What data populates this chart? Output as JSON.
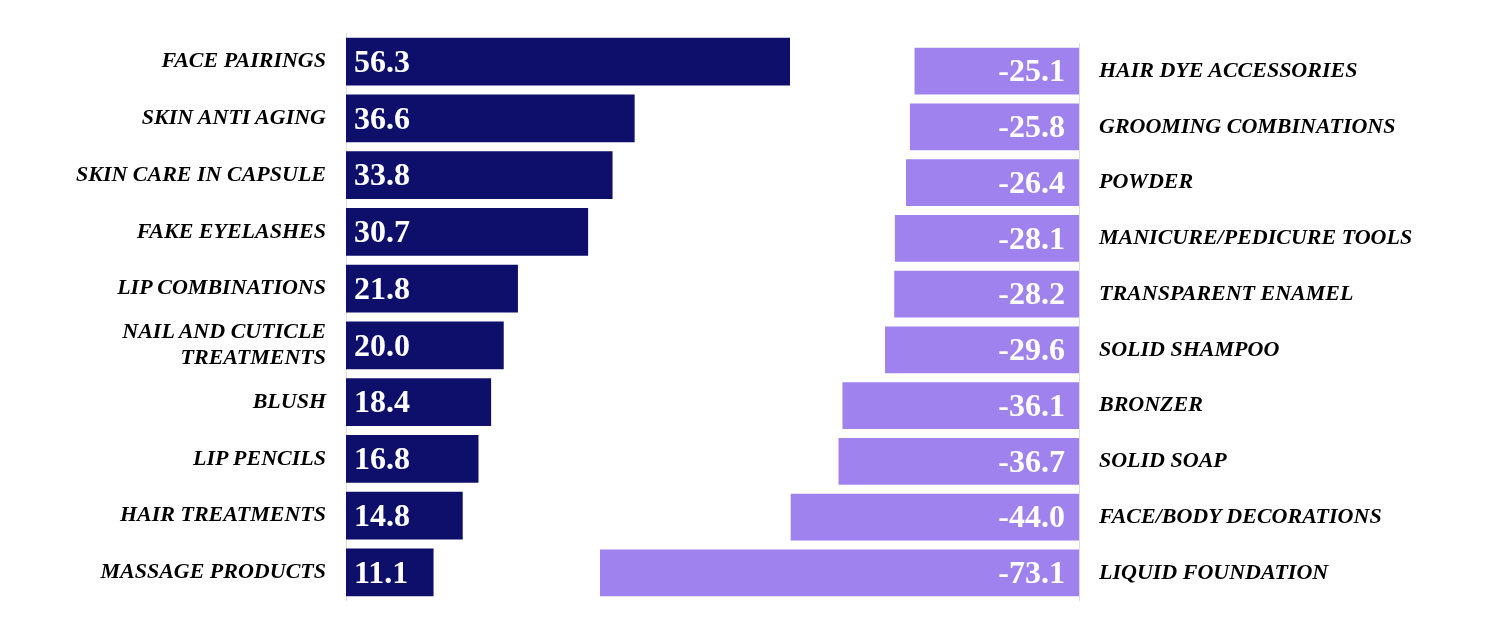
{
  "chart_data": [
    {
      "type": "bar",
      "orientation": "horizontal",
      "categories": [
        "FACE PAIRINGS",
        "SKIN ANTI AGING",
        "SKIN CARE IN CAPSULE",
        "FAKE EYELASHES",
        "LIP COMBINATIONS",
        "NAIL AND CUTICLE TREATMENTS",
        "BLUSH",
        "LIP PENCILS",
        "HAIR TREATMENTS",
        "MASSAGE PRODUCTS"
      ],
      "values": [
        56.3,
        36.6,
        33.8,
        30.7,
        21.8,
        20.0,
        18.4,
        16.8,
        14.8,
        11.1
      ],
      "value_labels": [
        "56.3",
        "36.6",
        "33.8",
        "30.7",
        "21.8",
        "20.0",
        "18.4",
        "16.8",
        "14.8",
        "11.1"
      ],
      "color": "#0d0f6b",
      "xlim": [
        0,
        56.3
      ],
      "tick_labels": "y",
      "grid": false
    },
    {
      "type": "bar",
      "orientation": "horizontal",
      "categories": [
        "HAIR DYE ACCESSORIES",
        "GROOMING COMBINATIONS",
        "POWDER",
        "MANICURE/PEDICURE TOOLS",
        "TRANSPARENT ENAMEL",
        "SOLID SHAMPOO",
        "BRONZER",
        "SOLID SOAP",
        "FACE/BODY DECORATIONS",
        "LIQUID FOUNDATION"
      ],
      "values": [
        -25.1,
        -25.8,
        -26.4,
        -28.1,
        -28.2,
        -29.6,
        -36.1,
        -36.7,
        -44.0,
        -73.1
      ],
      "value_labels": [
        "-25.1",
        "-25.8",
        "-26.4",
        "-28.1",
        "-28.2",
        "-29.6",
        "-36.1",
        "-36.7",
        "-44.0",
        "-73.1"
      ],
      "color": "#a082ee",
      "xlim": [
        -73.1,
        0
      ],
      "tick_labels": "y",
      "grid": false
    }
  ]
}
